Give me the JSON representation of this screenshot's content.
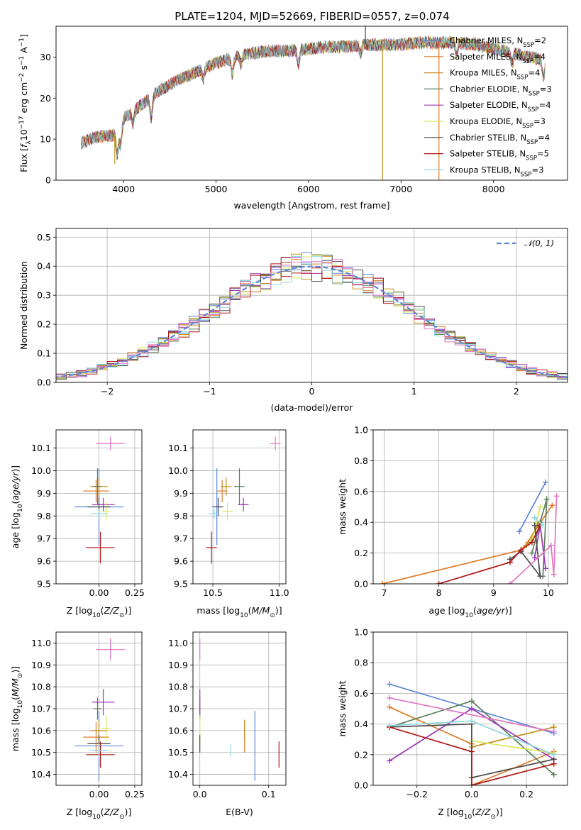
{
  "title": "PLATE=1204, MJD=52669, FIBERID=0557, z=0.074",
  "colors": {
    "Chabrier MILES": "#5f86d6",
    "Salpeter MILES": "#e07b26",
    "Kroupa MILES": "#c4901b",
    "Chabrier ELODIE": "#5a7f5a",
    "Salpeter ELODIE": "#9a36b6",
    "Kroupa ELODIE": "#d9e85c",
    "Chabrier STELIB": "#4a4a4a",
    "Salpeter STELIB": "#b01818",
    "Kroupa STELIB": "#8fd8e0",
    "pink": "#e377c2",
    "normal": "#5f86d6"
  },
  "chart_data": [
    {
      "id": "spectrum",
      "type": "line",
      "xlabel": "wavelength [Angstrom, rest frame]",
      "ylabel": "Flux [f_λ10^-17 erg cm^-2 s^-1 A^-1]",
      "ylabel_parts": [
        "Flux [f",
        "λ",
        "10",
        "−17",
        " erg cm",
        "−2",
        " s",
        "−1",
        " A",
        "−1",
        "]"
      ],
      "xlim": [
        3270,
        8800
      ],
      "ylim": [
        0,
        37.5
      ],
      "xticks": [
        4000,
        5000,
        6000,
        7000,
        8000
      ],
      "yticks": [
        0,
        10,
        20,
        30
      ],
      "continuum": {
        "x": [
          3540,
          3700,
          3900,
          4000,
          4200,
          4400,
          4600,
          4800,
          5000,
          5200,
          5400,
          5600,
          5800,
          6000,
          6200,
          6400,
          6600,
          6800,
          7000,
          7200,
          7400,
          7600,
          7800,
          8000,
          8200,
          8400,
          8560
        ],
        "y": [
          9,
          10.5,
          11,
          15,
          18.5,
          22,
          24.5,
          26.5,
          28.5,
          30,
          31,
          31.5,
          31.5,
          32,
          32.5,
          32.5,
          33,
          33,
          33,
          33.5,
          33.5,
          33.5,
          33,
          32,
          31,
          30,
          29
        ]
      },
      "features": [
        {
          "x": 3933,
          "depth": 6
        },
        {
          "x": 3969,
          "depth": 5
        },
        {
          "x": 4102,
          "depth": 3
        },
        {
          "x": 4300,
          "depth": 5
        },
        {
          "x": 4861,
          "depth": 2.5
        },
        {
          "x": 5175,
          "depth": 4
        },
        {
          "x": 5270,
          "depth": 2
        },
        {
          "x": 5890,
          "depth": 3.5
        },
        {
          "x": 6563,
          "depth": 2
        },
        {
          "x": 7600,
          "depth": 2.5
        },
        {
          "x": 8200,
          "depth": 2.5
        },
        {
          "x": 8540,
          "depth": 4
        }
      ],
      "spikes": [
        {
          "x": 6800,
          "color_key": "Kroupa MILES",
          "to": 0
        },
        {
          "x": 7410,
          "color_key": "Salpeter MILES",
          "to": 0
        },
        {
          "x": 3905,
          "color_key": "Kroupa MILES",
          "to": 4
        },
        {
          "x": 6615,
          "color_key": "Chabrier STELIB",
          "to": 40
        }
      ],
      "legend": [
        {
          "name": "Chabrier MILES",
          "n": "2"
        },
        {
          "name": "Salpeter MILES",
          "n": "4"
        },
        {
          "name": "Kroupa MILES",
          "n": "4"
        },
        {
          "name": "Chabrier ELODIE",
          "n": "3"
        },
        {
          "name": "Salpeter ELODIE",
          "n": "4"
        },
        {
          "name": "Kroupa ELODIE",
          "n": "3"
        },
        {
          "name": "Chabrier STELIB",
          "n": "4"
        },
        {
          "name": "Salpeter STELIB",
          "n": "5"
        },
        {
          "name": "Kroupa STELIB",
          "n": "3"
        }
      ],
      "legend_prefix": "N",
      "legend_sub": "SSP",
      "legend_placement": "upper-right"
    },
    {
      "id": "residuals",
      "type": "histogram",
      "xlabel": "(data-model)/error",
      "ylabel": "Normed distribution",
      "xlim": [
        -2.5,
        2.5
      ],
      "ylim": [
        0,
        0.53
      ],
      "xticks": [
        -2,
        -1,
        0,
        1,
        2
      ],
      "yticks": [
        0.0,
        0.1,
        0.2,
        0.3,
        0.4,
        0.5
      ],
      "grid": true,
      "bin_width": 0.1,
      "normal_curve": {
        "mean": 0,
        "sigma": 1,
        "legend": "𝒩(0, 1)",
        "style": "dashed"
      },
      "legend_placement": "upper-right",
      "n_histograms": 9
    },
    {
      "id": "age-vs-Z",
      "type": "errorbar",
      "xlabel": "Z [log10(Z/Z⊙)]",
      "ylabel": "age  [log10(age/yr)]",
      "xlim": [
        -0.3,
        0.3
      ],
      "ylim": [
        9.5,
        10.18
      ],
      "xticks": [
        0.0,
        0.25
      ],
      "yticks": [
        9.5,
        9.6,
        9.7,
        9.8,
        9.9,
        10.0,
        10.1
      ],
      "grid": true
    },
    {
      "id": "age-vs-mass",
      "type": "errorbar",
      "xlabel": "mass [log10(M/M⊙)]",
      "ylabel": "",
      "xlim": [
        10.35,
        11.05
      ],
      "ylim": [
        9.5,
        10.18
      ],
      "xticks": [
        10.5,
        11.0
      ],
      "yticks": [
        9.5,
        9.6,
        9.7,
        9.8,
        9.9,
        10.0,
        10.1
      ],
      "grid": true
    },
    {
      "id": "weight-vs-age",
      "type": "line",
      "xlabel": "age  [log10(age/yr)]",
      "ylabel": "mass weight",
      "xlim": [
        6.8,
        10.35
      ],
      "ylim": [
        0,
        1.0
      ],
      "xticks": [
        7,
        8,
        9,
        10
      ],
      "yticks": [
        0.0,
        0.2,
        0.4,
        0.6,
        0.8,
        1.0
      ],
      "grid": true
    },
    {
      "id": "mass-vs-Z",
      "type": "errorbar",
      "xlabel": "Z [log10(Z/Z⊙)]",
      "ylabel": "mass [log10(M/M⊙)]",
      "xlim": [
        -0.3,
        0.3
      ],
      "ylim": [
        10.35,
        11.05
      ],
      "xticks": [
        0.0,
        0.25
      ],
      "yticks": [
        10.4,
        10.5,
        10.6,
        10.7,
        10.8,
        10.9,
        11.0
      ],
      "grid": true
    },
    {
      "id": "mass-vs-EBV",
      "type": "errorbar",
      "xlabel": "E(B-V)",
      "ylabel": "",
      "xlim": [
        -0.01,
        0.125
      ],
      "ylim": [
        10.35,
        11.05
      ],
      "xticks": [
        0.0,
        0.1
      ],
      "yticks": [
        10.4,
        10.5,
        10.6,
        10.7,
        10.8,
        10.9,
        11.0
      ],
      "grid": true
    },
    {
      "id": "weight-vs-Z",
      "type": "line",
      "xlabel": "Z [log10(Z/Z⊙)]",
      "ylabel": "mass weight",
      "xlim": [
        -0.36,
        0.35
      ],
      "ylim": [
        0,
        1.0
      ],
      "xticks": [
        -0.2,
        0.0,
        0.2
      ],
      "yticks": [
        0.0,
        0.2,
        0.4,
        0.6,
        0.8,
        1.0
      ],
      "grid": true
    }
  ],
  "models": [
    {
      "key": "Chabrier MILES",
      "Z": [
        0.0,
        0.5,
        -0.17,
        0.17
      ],
      "age": [
        9.84,
        0.17,
        0.0,
        0.0
      ],
      "mass": [
        10.53,
        0.16,
        0.0,
        0.0
      ],
      "ebv": 0.08,
      "w_age": [
        [
          9.47,
          0.34
        ],
        [
          9.95,
          0.66
        ]
      ],
      "w_Z": [
        [
          -0.3,
          0.66
        ],
        [
          0.3,
          0.34
        ]
      ]
    },
    {
      "key": "Salpeter MILES",
      "Z": [
        -0.02,
        0.0,
        -0.09,
        0.09
      ],
      "age": [
        9.91,
        0.05,
        0.0,
        0.0
      ],
      "mass": [
        10.57,
        0.07,
        0.0,
        0.0
      ],
      "ebv": 0.065,
      "w_age": [
        [
          6.97,
          0.0
        ],
        [
          9.5,
          0.22
        ],
        [
          9.63,
          0.27
        ],
        [
          9.82,
          0.38
        ],
        [
          10.07,
          0.51
        ]
      ],
      "w_Z": [
        [
          -0.3,
          0.51
        ],
        [
          0.0,
          0.27
        ],
        [
          0.0,
          0.0
        ],
        [
          0.3,
          0.22
        ]
      ]
    },
    {
      "key": "Kroupa MILES",
      "Z": [
        0.0,
        0.0,
        -0.06,
        0.06
      ],
      "age": [
        9.93,
        0.04,
        0.0,
        0.0
      ],
      "mass": [
        10.6,
        0.05,
        0.0,
        0.0
      ],
      "ebv": 0.065,
      "w_age": [
        [
          9.6,
          0.25
        ],
        [
          9.8,
          0.38
        ]
      ],
      "w_Z": [
        [
          0.0,
          0.25
        ],
        [
          0.3,
          0.38
        ]
      ]
    },
    {
      "key": "Chabrier ELODIE",
      "Z": [
        -0.01,
        0.0,
        -0.03,
        0.03
      ],
      "age": [
        9.93,
        0.08,
        0.0,
        0.0
      ],
      "mass": [
        10.7,
        0.05,
        0.0,
        0.0
      ],
      "ebv": 0.0,
      "w_age": [
        [
          9.7,
          0.2
        ],
        [
          9.85,
          0.4
        ],
        [
          9.97,
          0.55
        ],
        [
          9.9,
          0.05
        ]
      ],
      "w_Z": [
        [
          -0.3,
          0.38
        ],
        [
          0.0,
          0.55
        ],
        [
          0.3,
          0.07
        ]
      ]
    },
    {
      "key": "Salpeter ELODIE",
      "Z": [
        0.03,
        0.0,
        -0.08,
        0.08
      ],
      "age": [
        9.85,
        0.03,
        0.0,
        0.0
      ],
      "mass": [
        10.73,
        0.06,
        0.0,
        0.0
      ],
      "ebv": 0.0,
      "w_age": [
        [
          9.75,
          0.17
        ],
        [
          9.85,
          0.38
        ],
        [
          9.95,
          0.1
        ]
      ],
      "w_Z": [
        [
          -0.3,
          0.16
        ],
        [
          0.0,
          0.5
        ],
        [
          0.3,
          0.17
        ]
      ]
    },
    {
      "key": "Kroupa ELODIE",
      "Z": [
        0.05,
        0.0,
        -0.03,
        0.03
      ],
      "age": [
        9.82,
        0.04,
        0.0,
        0.0
      ],
      "mass": [
        10.61,
        0.06,
        0.0,
        0.0
      ],
      "ebv": 0.0,
      "w_age": [
        [
          9.7,
          0.28
        ],
        [
          9.85,
          0.5
        ]
      ],
      "w_Z": [
        [
          0.0,
          0.29
        ],
        [
          0.3,
          0.21
        ]
      ]
    },
    {
      "key": "Chabrier STELIB",
      "Z": [
        0.0,
        0.0,
        -0.08,
        0.08
      ],
      "age": [
        9.84,
        0.04,
        0.0,
        0.0
      ],
      "mass": [
        10.54,
        0.04,
        0.0,
        0.0
      ],
      "ebv": 0.0,
      "w_age": [
        [
          9.3,
          0.16
        ],
        [
          9.5,
          0.21
        ],
        [
          9.85,
          0.05
        ],
        [
          9.75,
          0.38
        ]
      ],
      "w_Z": [
        [
          -0.3,
          0.38
        ],
        [
          0.0,
          0.4
        ],
        [
          0.0,
          0.05
        ],
        [
          0.3,
          0.17
        ]
      ]
    },
    {
      "key": "Salpeter STELIB",
      "Z": [
        0.01,
        0.0,
        -0.1,
        0.1
      ],
      "age": [
        9.66,
        0.07,
        0.0,
        0.0
      ],
      "mass": [
        10.49,
        0.06,
        0.0,
        0.0
      ],
      "ebv": 0.115,
      "w_age": [
        [
          8.0,
          0.0
        ],
        [
          9.3,
          0.14
        ],
        [
          9.5,
          0.22
        ],
        [
          9.7,
          0.27
        ],
        [
          9.85,
          0.38
        ]
      ],
      "w_Z": [
        [
          -0.3,
          0.38
        ],
        [
          0.0,
          0.22
        ],
        [
          0.0,
          0.0
        ],
        [
          0.3,
          0.14
        ]
      ]
    },
    {
      "key": "Kroupa STELIB",
      "Z": [
        0.0,
        0.0,
        -0.06,
        0.06
      ],
      "age": [
        9.81,
        0.02,
        0.0,
        0.0
      ],
      "mass": [
        10.51,
        0.03,
        0.0,
        0.0
      ],
      "ebv": 0.045,
      "w_age": [
        [
          9.75,
          0.43
        ],
        [
          9.9,
          0.38
        ]
      ],
      "w_Z": [
        [
          -0.3,
          0.39
        ],
        [
          0.0,
          0.42
        ],
        [
          0.3,
          0.2
        ]
      ]
    },
    {
      "key": "pink",
      "Z": [
        0.08,
        0.0,
        -0.1,
        0.1
      ],
      "age": [
        10.12,
        0.03,
        0.0,
        0.0
      ],
      "mass": [
        10.97,
        0.05,
        0.0,
        0.0
      ],
      "ebv": 0.0,
      "w_age": [
        [
          9.3,
          0.0
        ],
        [
          10.05,
          0.25
        ],
        [
          10.1,
          0.06
        ],
        [
          10.15,
          0.57
        ]
      ],
      "w_Z": [
        [
          -0.3,
          0.57
        ],
        [
          0.3,
          0.35
        ]
      ]
    }
  ]
}
